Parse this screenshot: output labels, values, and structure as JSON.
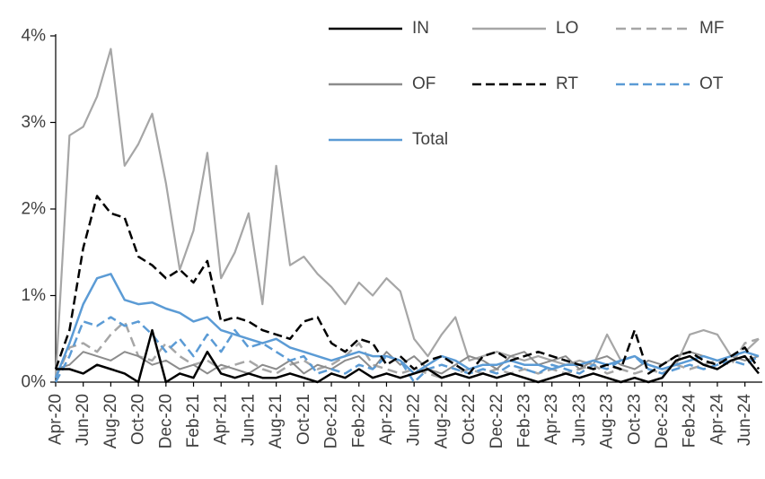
{
  "figure": {
    "background": "#ffffff",
    "axis_color": "#000000",
    "label_color": "#404040"
  },
  "chart_data": {
    "type": "line",
    "title": "",
    "xlabel": "",
    "ylabel": "",
    "ylim": [
      0,
      4
    ],
    "grid": false,
    "legend_position": "top-right",
    "y_ticks": [
      "0%",
      "1%",
      "2%",
      "3%",
      "4%"
    ],
    "x_tick_every": 2,
    "x": [
      "Apr-20",
      "May-20",
      "Jun-20",
      "Jul-20",
      "Aug-20",
      "Sep-20",
      "Oct-20",
      "Nov-20",
      "Dec-20",
      "Jan-21",
      "Feb-21",
      "Mar-21",
      "Apr-21",
      "May-21",
      "Jun-21",
      "Jul-21",
      "Aug-21",
      "Sep-21",
      "Oct-21",
      "Nov-21",
      "Dec-21",
      "Jan-22",
      "Feb-22",
      "Mar-22",
      "Apr-22",
      "May-22",
      "Jun-22",
      "Jul-22",
      "Aug-22",
      "Sep-22",
      "Oct-22",
      "Nov-22",
      "Dec-22",
      "Jan-23",
      "Feb-23",
      "Mar-23",
      "Apr-23",
      "May-23",
      "Jun-23",
      "Jul-23",
      "Aug-23",
      "Sep-23",
      "Oct-23",
      "Nov-23",
      "Dec-23",
      "Jan-24",
      "Feb-24",
      "Mar-24",
      "Apr-24",
      "May-24",
      "Jun-24",
      "Jul-24"
    ],
    "series": [
      {
        "name": "IN",
        "color": "#000000",
        "dash": null,
        "width": 2.5,
        "values": [
          0.15,
          0.15,
          0.1,
          0.2,
          0.15,
          0.1,
          0.0,
          0.6,
          0.0,
          0.1,
          0.05,
          0.35,
          0.1,
          0.05,
          0.1,
          0.05,
          0.05,
          0.1,
          0.05,
          0.0,
          0.1,
          0.05,
          0.15,
          0.05,
          0.1,
          0.05,
          0.1,
          0.15,
          0.05,
          0.1,
          0.05,
          0.1,
          0.05,
          0.1,
          0.05,
          0.0,
          0.05,
          0.1,
          0.05,
          0.1,
          0.05,
          0.0,
          0.05,
          0.0,
          0.05,
          0.25,
          0.3,
          0.2,
          0.15,
          0.25,
          0.3,
          0.1
        ]
      },
      {
        "name": "LO",
        "color": "#a6a6a6",
        "dash": null,
        "width": 2.2,
        "values": [
          0.05,
          2.85,
          2.95,
          3.3,
          3.85,
          2.5,
          2.75,
          3.1,
          2.3,
          1.3,
          1.75,
          2.65,
          1.2,
          1.5,
          1.95,
          0.9,
          2.5,
          1.35,
          1.45,
          1.25,
          1.1,
          0.9,
          1.15,
          1.0,
          1.2,
          1.05,
          0.5,
          0.3,
          0.55,
          0.75,
          0.25,
          0.3,
          0.35,
          0.3,
          0.25,
          0.3,
          0.25,
          0.2,
          0.25,
          0.2,
          0.55,
          0.25,
          0.3,
          0.2,
          0.15,
          0.2,
          0.55,
          0.6,
          0.55,
          0.3,
          0.35,
          0.5
        ]
      },
      {
        "name": "MF",
        "color": "#a6a6a6",
        "dash": "11,6",
        "width": 2.5,
        "values": [
          0.05,
          0.4,
          0.45,
          0.35,
          0.55,
          0.7,
          0.3,
          0.25,
          0.45,
          0.3,
          0.2,
          0.25,
          0.15,
          0.2,
          0.25,
          0.15,
          0.1,
          0.2,
          0.25,
          0.15,
          0.2,
          0.3,
          0.45,
          0.2,
          0.15,
          0.1,
          0.15,
          0.1,
          0.05,
          0.1,
          0.15,
          0.1,
          0.15,
          0.1,
          0.15,
          0.1,
          0.15,
          0.1,
          0.15,
          0.2,
          0.1,
          0.15,
          0.1,
          0.15,
          0.1,
          0.2,
          0.15,
          0.2,
          0.25,
          0.2,
          0.45,
          0.5
        ]
      },
      {
        "name": "OF",
        "color": "#8c8c8c",
        "dash": null,
        "width": 2.0,
        "values": [
          0.15,
          0.2,
          0.35,
          0.3,
          0.25,
          0.35,
          0.3,
          0.2,
          0.25,
          0.15,
          0.2,
          0.1,
          0.2,
          0.15,
          0.1,
          0.2,
          0.15,
          0.25,
          0.1,
          0.2,
          0.15,
          0.25,
          0.3,
          0.15,
          0.35,
          0.2,
          0.3,
          0.15,
          0.1,
          0.2,
          0.3,
          0.25,
          0.15,
          0.3,
          0.35,
          0.2,
          0.25,
          0.3,
          0.15,
          0.25,
          0.3,
          0.2,
          0.15,
          0.25,
          0.2,
          0.3,
          0.35,
          0.3,
          0.25,
          0.3,
          0.25,
          0.3
        ]
      },
      {
        "name": "RT",
        "color": "#000000",
        "dash": "10,5",
        "width": 2.5,
        "values": [
          0.15,
          0.6,
          1.55,
          2.15,
          1.95,
          1.9,
          1.45,
          1.35,
          1.2,
          1.3,
          1.15,
          1.4,
          0.7,
          0.75,
          0.7,
          0.6,
          0.55,
          0.5,
          0.7,
          0.75,
          0.45,
          0.35,
          0.5,
          0.45,
          0.2,
          0.3,
          0.15,
          0.25,
          0.3,
          0.2,
          0.1,
          0.3,
          0.35,
          0.25,
          0.3,
          0.35,
          0.3,
          0.25,
          0.2,
          0.15,
          0.2,
          0.15,
          0.6,
          0.1,
          0.2,
          0.3,
          0.35,
          0.25,
          0.2,
          0.3,
          0.4,
          0.15
        ]
      },
      {
        "name": "OT",
        "color": "#5b9bd5",
        "dash": "10,5",
        "width": 2.5,
        "values": [
          0.0,
          0.3,
          0.7,
          0.65,
          0.75,
          0.65,
          0.7,
          0.55,
          0.35,
          0.5,
          0.3,
          0.55,
          0.35,
          0.6,
          0.4,
          0.45,
          0.35,
          0.25,
          0.3,
          0.1,
          0.15,
          0.1,
          0.2,
          0.15,
          0.3,
          0.25,
          0.0,
          0.15,
          0.2,
          0.15,
          0.1,
          0.15,
          0.1,
          0.2,
          0.15,
          0.1,
          0.2,
          0.15,
          0.1,
          0.2,
          0.15,
          0.25,
          0.3,
          0.15,
          0.1,
          0.15,
          0.2,
          0.15,
          0.2,
          0.25,
          0.2,
          0.3
        ]
      },
      {
        "name": "Total",
        "color": "#5b9bd5",
        "dash": null,
        "width": 2.5,
        "values": [
          0.05,
          0.45,
          0.9,
          1.2,
          1.25,
          0.95,
          0.9,
          0.92,
          0.85,
          0.8,
          0.7,
          0.75,
          0.6,
          0.55,
          0.5,
          0.45,
          0.5,
          0.4,
          0.35,
          0.3,
          0.25,
          0.3,
          0.35,
          0.3,
          0.3,
          0.25,
          0.1,
          0.2,
          0.3,
          0.25,
          0.15,
          0.2,
          0.2,
          0.25,
          0.2,
          0.2,
          0.15,
          0.2,
          0.2,
          0.25,
          0.2,
          0.25,
          0.3,
          0.2,
          0.15,
          0.2,
          0.25,
          0.3,
          0.25,
          0.3,
          0.35,
          0.3
        ]
      }
    ]
  }
}
